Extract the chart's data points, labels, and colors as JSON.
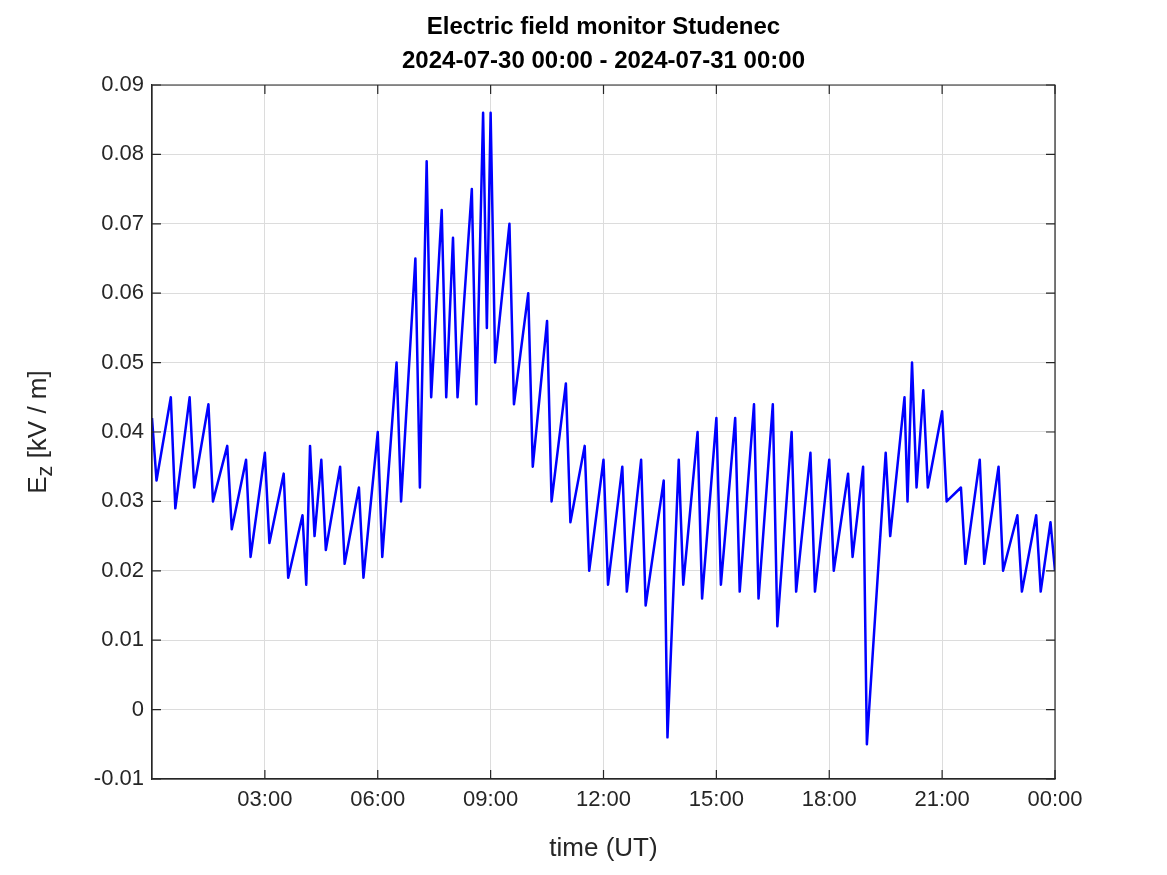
{
  "chart_data": {
    "type": "line",
    "title": "Electric field monitor Studenec",
    "subtitle": "2024-07-30 00:00 - 2024-07-31 00:00",
    "xlabel": "time (UT)",
    "ylabel": "E$_{z}$ [kV / m]",
    "xlim": [
      0,
      24
    ],
    "xticks": [
      {
        "value": 3,
        "label": "03:00"
      },
      {
        "value": 6,
        "label": "06:00"
      },
      {
        "value": 9,
        "label": "09:00"
      },
      {
        "value": 12,
        "label": "12:00"
      },
      {
        "value": 15,
        "label": "15:00"
      },
      {
        "value": 18,
        "label": "18:00"
      },
      {
        "value": 21,
        "label": "21:00"
      },
      {
        "value": 24,
        "label": "00:00"
      }
    ],
    "ylim": [
      -0.01,
      0.09
    ],
    "yticks": [
      -0.01,
      0,
      0.01,
      0.02,
      0.03,
      0.04,
      0.05,
      0.06,
      0.07,
      0.08,
      0.09
    ],
    "grid": true,
    "series": [
      {
        "color": "#0000ff",
        "x": [
          0,
          0.12,
          0.5,
          0.62,
          1,
          1.12,
          1.5,
          1.62,
          2,
          2.12,
          2.5,
          2.62,
          3,
          3.12,
          3.5,
          3.62,
          4,
          4.1,
          4.2,
          4.32,
          4.5,
          4.62,
          5,
          5.12,
          5.5,
          5.62,
          6,
          6.12,
          6.5,
          6.62,
          7,
          7.12,
          7.3,
          7.42,
          7.7,
          7.82,
          8,
          8.12,
          8.5,
          8.62,
          8.8,
          8.9,
          9,
          9.12,
          9.5,
          9.62,
          10,
          10.12,
          10.5,
          10.62,
          11,
          11.12,
          11.5,
          11.62,
          12,
          12.12,
          12.5,
          12.62,
          13,
          13.12,
          13.6,
          13.7,
          14,
          14.12,
          14.5,
          14.62,
          15,
          15.12,
          15.5,
          15.62,
          16,
          16.12,
          16.5,
          16.62,
          17,
          17.12,
          17.5,
          17.62,
          18,
          18.12,
          18.5,
          18.62,
          18.9,
          19,
          19.5,
          19.62,
          20,
          20.08,
          20.2,
          20.32,
          20.5,
          20.62,
          21,
          21.12,
          21.5,
          21.62,
          22,
          22.12,
          22.5,
          22.62,
          23,
          23.12,
          23.5,
          23.62,
          23.88,
          24
        ],
        "values": [
          0.042,
          0.033,
          0.045,
          0.029,
          0.045,
          0.032,
          0.044,
          0.03,
          0.038,
          0.026,
          0.036,
          0.022,
          0.037,
          0.024,
          0.034,
          0.019,
          0.028,
          0.018,
          0.038,
          0.025,
          0.036,
          0.023,
          0.035,
          0.021,
          0.032,
          0.019,
          0.04,
          0.022,
          0.05,
          0.03,
          0.065,
          0.032,
          0.079,
          0.045,
          0.072,
          0.045,
          0.068,
          0.045,
          0.075,
          0.044,
          0.086,
          0.055,
          0.086,
          0.05,
          0.07,
          0.044,
          0.06,
          0.035,
          0.056,
          0.03,
          0.047,
          0.027,
          0.038,
          0.02,
          0.036,
          0.018,
          0.035,
          0.017,
          0.036,
          0.015,
          0.033,
          -0.004,
          0.036,
          0.018,
          0.04,
          0.016,
          0.042,
          0.018,
          0.042,
          0.017,
          0.044,
          0.016,
          0.044,
          0.012,
          0.04,
          0.017,
          0.037,
          0.017,
          0.036,
          0.02,
          0.034,
          0.022,
          0.035,
          -0.005,
          0.037,
          0.025,
          0.045,
          0.03,
          0.05,
          0.032,
          0.046,
          0.032,
          0.043,
          0.03,
          0.032,
          0.021,
          0.036,
          0.021,
          0.035,
          0.02,
          0.028,
          0.017,
          0.028,
          0.017,
          0.027,
          0.02
        ]
      }
    ]
  }
}
